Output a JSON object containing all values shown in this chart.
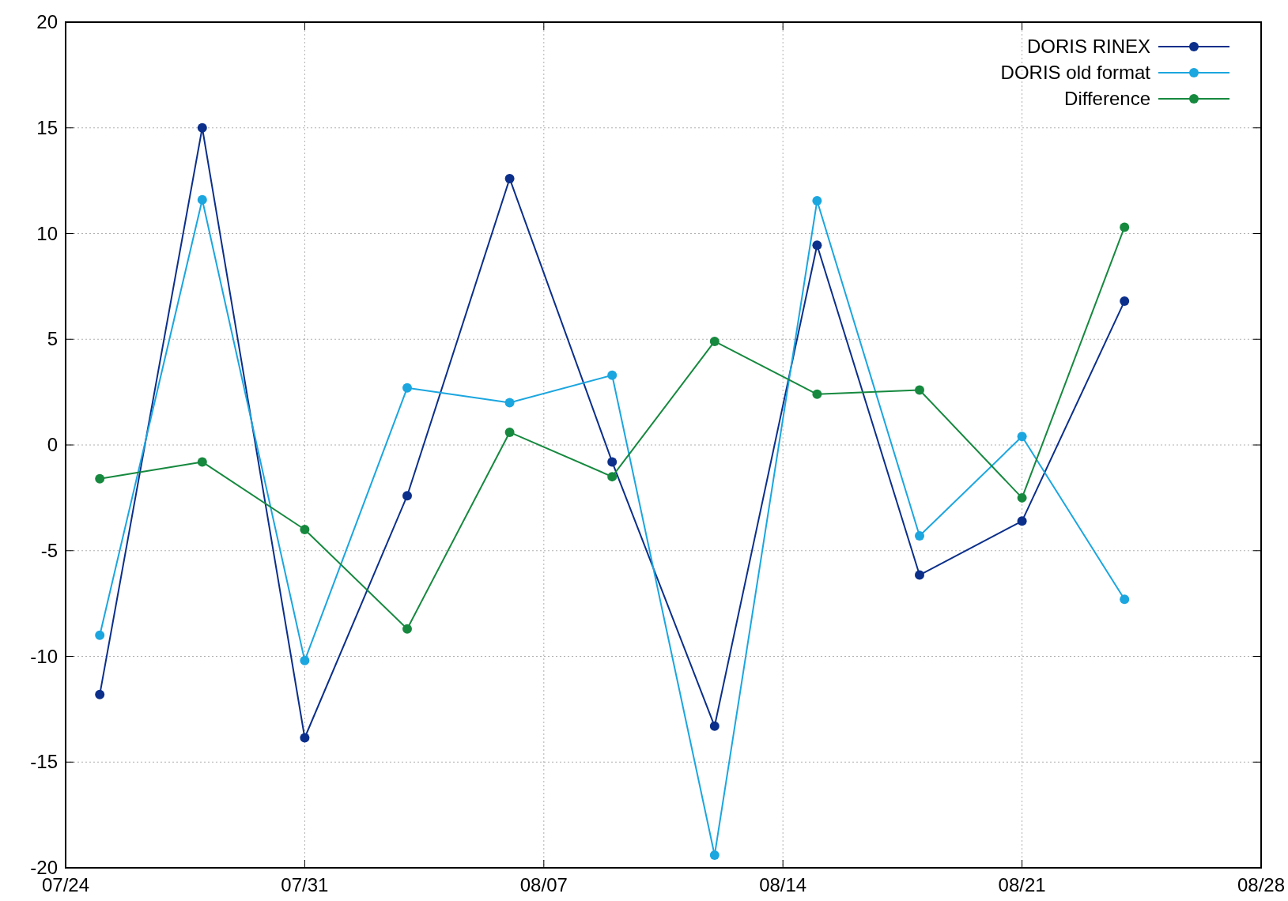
{
  "chart_data": {
    "type": "line",
    "x": [
      "--07-25",
      "--07-28",
      "--07-31",
      "--08-03",
      "--08-06",
      "--08-09",
      "--08-12",
      "--08-15",
      "--08-18",
      "--08-21",
      "--08-24"
    ],
    "series": [
      {
        "name": "DORIS RINEX",
        "color": "#0b2f8a",
        "values": [
          -11.8,
          15.0,
          -13.85,
          -2.4,
          12.6,
          -0.8,
          -13.3,
          9.45,
          -6.15,
          -3.6,
          6.8
        ]
      },
      {
        "name": "DORIS old format",
        "color": "#1ba6df",
        "values": [
          -9.0,
          11.6,
          -10.2,
          2.7,
          2.0,
          3.3,
          -19.4,
          11.55,
          -4.3,
          0.4,
          -7.3
        ]
      },
      {
        "name": "Difference",
        "color": "#16893f",
        "values": [
          -1.6,
          -0.8,
          -4.0,
          -8.7,
          0.6,
          -1.5,
          4.9,
          2.4,
          2.6,
          -2.5,
          10.3
        ]
      }
    ],
    "xlim": [
      "--07-24",
      "--08-28"
    ],
    "xticks": [
      {
        "value": "--07-24",
        "label": "07/24"
      },
      {
        "value": "--07-31",
        "label": "07/31"
      },
      {
        "value": "--08-07",
        "label": "08/07"
      },
      {
        "value": "--08-14",
        "label": "08/14"
      },
      {
        "value": "--08-21",
        "label": "08/21"
      },
      {
        "value": "--08-28",
        "label": "08/28"
      }
    ],
    "ylim": [
      -20,
      20
    ],
    "yticks": [
      -20,
      -15,
      -10,
      -5,
      0,
      5,
      10,
      15,
      20
    ],
    "grid": true,
    "legend": "top right",
    "marker": "circle",
    "line_style": "solid"
  }
}
